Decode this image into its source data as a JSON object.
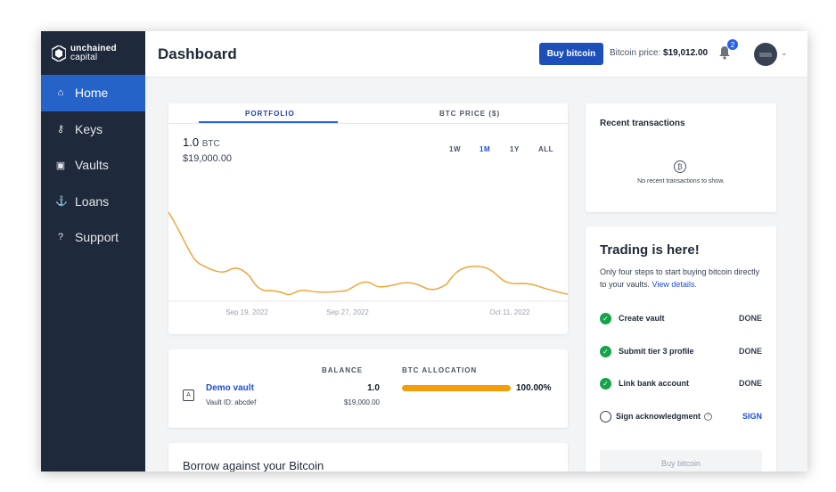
{
  "brand": {
    "line1": "unchained",
    "line2": "capital"
  },
  "sidebar": {
    "items": [
      {
        "label": "Home",
        "icon": "home-icon"
      },
      {
        "label": "Keys",
        "icon": "key-icon"
      },
      {
        "label": "Vaults",
        "icon": "vault-icon"
      },
      {
        "label": "Loans",
        "icon": "loan-icon"
      },
      {
        "label": "Support",
        "icon": "question-icon"
      }
    ],
    "active_index": 0
  },
  "header": {
    "title": "Dashboard",
    "buy_label": "Buy bitcoin",
    "price_label": "Bitcoin price:",
    "price_value": "$19,012.00",
    "notification_count": "2"
  },
  "portfolio": {
    "tabs": [
      "PORTFOLIO",
      "BTC PRICE ($)"
    ],
    "btc_amount": "1.0",
    "btc_unit": "BTC",
    "usd_value": "$19,000.00",
    "ranges": [
      "1W",
      "1M",
      "1Y",
      "ALL"
    ],
    "active_range": "1M"
  },
  "chart_data": {
    "type": "line",
    "x_ticks": [
      "Sep 19, 2022",
      "Sep 27, 2022",
      "Oct 11, 2022"
    ],
    "line_color": "#f0a030",
    "grid": false
  },
  "vault": {
    "col_balance": "BALANCE",
    "col_allocation": "BTC ALLOCATION",
    "name": "Demo vault",
    "id_label": "Vault ID: abcdef",
    "balance_btc": "1.0",
    "balance_usd": "$19,000.00",
    "allocation_pct": "100.00%",
    "allocation_fraction": 1.0
  },
  "borrow": {
    "title": "Borrow against your Bitcoin"
  },
  "recent": {
    "title": "Recent transactions",
    "empty_text": "No recent transactions to show."
  },
  "trading": {
    "title": "Trading is here!",
    "desc": "Only four steps to start buying bitcoin directly to your vaults.",
    "link": "View details.",
    "steps": [
      {
        "label": "Create vault",
        "status": "DONE",
        "done": true
      },
      {
        "label": "Submit tier 3 profile",
        "status": "DONE",
        "done": true
      },
      {
        "label": "Link bank account",
        "status": "DONE",
        "done": true
      },
      {
        "label": "Sign acknowledgment",
        "status": "SIGN",
        "done": false
      }
    ],
    "buy_label": "Buy bitcoin"
  },
  "colors": {
    "sidebar": "#1e293b",
    "accent": "#2563c9",
    "chart_line": "#f0a030",
    "success": "#16a34a"
  }
}
